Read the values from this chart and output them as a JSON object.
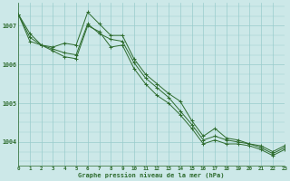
{
  "title": "Graphe pression niveau de la mer (hPa)",
  "background_color": "#cce8e8",
  "grid_color": "#99cccc",
  "line_color": "#2d6b2d",
  "marker_color": "#2d6b2d",
  "xmin": 0,
  "xmax": 23,
  "ymin": 1003.4,
  "ymax": 1007.6,
  "yticks": [
    1004,
    1005,
    1006,
    1007
  ],
  "xticks": [
    0,
    1,
    2,
    3,
    4,
    5,
    6,
    7,
    8,
    9,
    10,
    11,
    12,
    13,
    14,
    15,
    16,
    17,
    18,
    19,
    20,
    21,
    22,
    23
  ],
  "series1": {
    "x": [
      0,
      1,
      2,
      3,
      4,
      5,
      6,
      7,
      8,
      9,
      10,
      11,
      12,
      13,
      14,
      15,
      16,
      17,
      18,
      19,
      20,
      21,
      22,
      23
    ],
    "y": [
      1007.3,
      1006.8,
      1006.5,
      1006.45,
      1006.55,
      1006.5,
      1007.35,
      1007.05,
      1006.75,
      1006.75,
      1006.15,
      1005.75,
      1005.5,
      1005.25,
      1005.05,
      1004.55,
      1004.15,
      1004.35,
      1004.1,
      1004.05,
      1003.95,
      1003.9,
      1003.75,
      1003.9
    ]
  },
  "series2": {
    "x": [
      0,
      1,
      2,
      3,
      4,
      5,
      6,
      7,
      8,
      9,
      10,
      11,
      12,
      13,
      14,
      15,
      16,
      17,
      18,
      19,
      20,
      21,
      22,
      23
    ],
    "y": [
      1007.3,
      1006.7,
      1006.5,
      1006.4,
      1006.3,
      1006.25,
      1007.05,
      1006.8,
      1006.65,
      1006.6,
      1006.05,
      1005.65,
      1005.4,
      1005.15,
      1004.8,
      1004.45,
      1004.05,
      1004.15,
      1004.05,
      1004.0,
      1003.95,
      1003.85,
      1003.7,
      1003.85
    ]
  },
  "series3": {
    "x": [
      0,
      1,
      2,
      3,
      4,
      5,
      6,
      7,
      8,
      9,
      10,
      11,
      12,
      13,
      14,
      15,
      16,
      17,
      18,
      19,
      20,
      21,
      22,
      23
    ],
    "y": [
      1007.3,
      1006.6,
      1006.5,
      1006.35,
      1006.2,
      1006.15,
      1007.0,
      1006.85,
      1006.45,
      1006.5,
      1005.9,
      1005.5,
      1005.2,
      1005.0,
      1004.7,
      1004.35,
      1003.95,
      1004.05,
      1003.95,
      1003.95,
      1003.9,
      1003.8,
      1003.65,
      1003.8
    ]
  }
}
